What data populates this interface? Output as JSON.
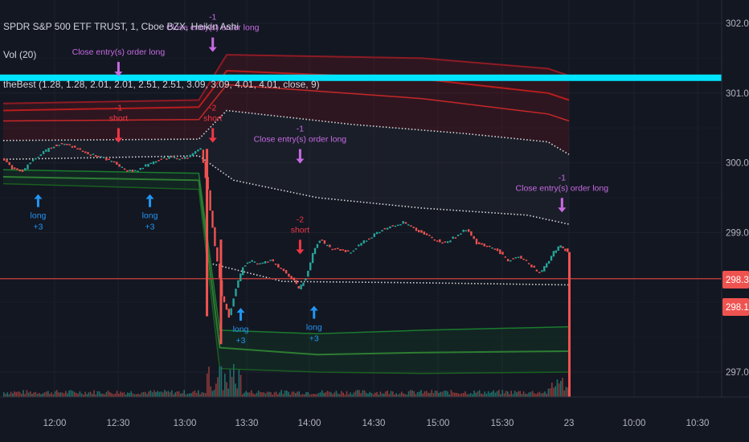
{
  "chart_data": {
    "type": "candlestick",
    "title": "SPDR S&P 500 ETF TRUST, 1, Cboe BZX, Heikin Ashi",
    "volume_label": "Vol (20)",
    "indicator_label": "theBest (1.28, 1.28, 2.01, 2.01, 2.51, 2.51, 3.09, 3.09, 4.01, 4.01, close, 9)",
    "y_axis": {
      "ylim": [
        296.6,
        302.3
      ],
      "ticks": [
        {
          "value": 302,
          "label": "302.00"
        },
        {
          "value": 301,
          "label": "301.00"
        },
        {
          "value": 300,
          "label": "300.00"
        },
        {
          "value": 299,
          "label": "299.00"
        },
        {
          "value": 297,
          "label": "297.00"
        }
      ]
    },
    "x_axis": {
      "ticks": [
        "12:00",
        "12:30",
        "13:00",
        "13:30",
        "14:00",
        "14:30",
        "15:00",
        "15:30",
        "23",
        "10:00",
        "10:30"
      ]
    },
    "price_badges": [
      {
        "label": "298.34",
        "value": 298.34,
        "color": "#ef5350"
      },
      {
        "label": "298.12",
        "value": 298.12,
        "color": "#ef5350"
      }
    ],
    "horizontal_lines": [
      {
        "value": 301.22,
        "color": "#00e5ff"
      },
      {
        "value": 298.34,
        "color": "#b23a3a"
      }
    ],
    "price_series": [
      {
        "t": 0,
        "y": 300.08
      },
      {
        "t": 1.5,
        "y": 299.92
      },
      {
        "t": 3,
        "y": 299.88
      },
      {
        "t": 4.5,
        "y": 300.05
      },
      {
        "t": 6,
        "y": 300.15
      },
      {
        "t": 7.5,
        "y": 300.25
      },
      {
        "t": 9,
        "y": 300.28
      },
      {
        "t": 10.5,
        "y": 300.22
      },
      {
        "t": 12,
        "y": 300.15
      },
      {
        "t": 13.5,
        "y": 300.1
      },
      {
        "t": 15,
        "y": 300.05
      },
      {
        "t": 16.5,
        "y": 299.98
      },
      {
        "t": 18,
        "y": 299.88
      },
      {
        "t": 19.5,
        "y": 299.9
      },
      {
        "t": 21,
        "y": 299.98
      },
      {
        "t": 22.5,
        "y": 300.05
      },
      {
        "t": 24,
        "y": 300.08
      },
      {
        "t": 25.5,
        "y": 300.06
      },
      {
        "t": 27,
        "y": 300.1
      },
      {
        "t": 28.5,
        "y": 300.2
      },
      {
        "t": 29.5,
        "y": 299.6
      },
      {
        "t": 30.5,
        "y": 298.8
      },
      {
        "t": 31.5,
        "y": 298.1
      },
      {
        "t": 32.5,
        "y": 297.8
      },
      {
        "t": 33.5,
        "y": 298.2
      },
      {
        "t": 34.5,
        "y": 298.5
      },
      {
        "t": 35.5,
        "y": 298.6
      },
      {
        "t": 37,
        "y": 298.55
      },
      {
        "t": 38.5,
        "y": 298.6
      },
      {
        "t": 40,
        "y": 298.48
      },
      {
        "t": 41.5,
        "y": 298.35
      },
      {
        "t": 42.5,
        "y": 298.2
      },
      {
        "t": 43.5,
        "y": 298.35
      },
      {
        "t": 44.5,
        "y": 298.7
      },
      {
        "t": 45.5,
        "y": 298.9
      },
      {
        "t": 47,
        "y": 298.78
      },
      {
        "t": 48.5,
        "y": 298.75
      },
      {
        "t": 50,
        "y": 298.72
      },
      {
        "t": 51.5,
        "y": 298.85
      },
      {
        "t": 53,
        "y": 298.95
      },
      {
        "t": 54.5,
        "y": 299.05
      },
      {
        "t": 56,
        "y": 299.1
      },
      {
        "t": 57.5,
        "y": 299.15
      },
      {
        "t": 59,
        "y": 299.05
      },
      {
        "t": 60.5,
        "y": 298.98
      },
      {
        "t": 62,
        "y": 298.9
      },
      {
        "t": 63.5,
        "y": 298.85
      },
      {
        "t": 65,
        "y": 298.95
      },
      {
        "t": 66.5,
        "y": 299.05
      },
      {
        "t": 68,
        "y": 298.85
      },
      {
        "t": 69.5,
        "y": 298.8
      },
      {
        "t": 71,
        "y": 298.75
      },
      {
        "t": 72.5,
        "y": 298.6
      },
      {
        "t": 74,
        "y": 298.65
      },
      {
        "t": 75.5,
        "y": 298.55
      },
      {
        "t": 77,
        "y": 298.42
      },
      {
        "t": 78,
        "y": 298.55
      },
      {
        "t": 79,
        "y": 298.72
      },
      {
        "t": 80,
        "y": 298.82
      },
      {
        "t": 81,
        "y": 298.72
      }
    ],
    "bands": {
      "red_outer_1": [
        {
          "t": 0,
          "y": 300.85
        },
        {
          "t": 28,
          "y": 300.9
        },
        {
          "t": 32,
          "y": 301.55
        },
        {
          "t": 60,
          "y": 301.5
        },
        {
          "t": 78,
          "y": 301.35
        },
        {
          "t": 81,
          "y": 301.25
        }
      ],
      "red_outer_2": [
        {
          "t": 0,
          "y": 300.75
        },
        {
          "t": 28,
          "y": 300.8
        },
        {
          "t": 32,
          "y": 301.32
        },
        {
          "t": 60,
          "y": 301.2
        },
        {
          "t": 78,
          "y": 301.0
        },
        {
          "t": 81,
          "y": 300.9
        }
      ],
      "red_inner": [
        {
          "t": 0,
          "y": 300.6
        },
        {
          "t": 28,
          "y": 300.62
        },
        {
          "t": 32,
          "y": 301.12
        },
        {
          "t": 60,
          "y": 300.92
        },
        {
          "t": 78,
          "y": 300.7
        },
        {
          "t": 81,
          "y": 300.6
        }
      ],
      "white_upper": [
        {
          "t": 0,
          "y": 300.32
        },
        {
          "t": 28,
          "y": 300.34
        },
        {
          "t": 32,
          "y": 300.75
        },
        {
          "t": 50,
          "y": 300.55
        },
        {
          "t": 66,
          "y": 300.42
        },
        {
          "t": 78,
          "y": 300.3
        },
        {
          "t": 81,
          "y": 300.12
        }
      ],
      "white_lower": [
        {
          "t": 0,
          "y": 300.05
        },
        {
          "t": 28,
          "y": 300.1
        },
        {
          "t": 33,
          "y": 299.75
        },
        {
          "t": 45,
          "y": 299.5
        },
        {
          "t": 60,
          "y": 299.35
        },
        {
          "t": 75,
          "y": 299.25
        },
        {
          "t": 81,
          "y": 299.12
        }
      ],
      "white_bottom": [
        {
          "t": 30,
          "y": 298.55
        },
        {
          "t": 40,
          "y": 298.3
        },
        {
          "t": 60,
          "y": 298.28
        },
        {
          "t": 81,
          "y": 298.25
        }
      ],
      "green_1": [
        {
          "t": 0,
          "y": 299.9
        },
        {
          "t": 28,
          "y": 299.85
        },
        {
          "t": 31,
          "y": 297.6
        },
        {
          "t": 45,
          "y": 297.55
        },
        {
          "t": 60,
          "y": 297.6
        },
        {
          "t": 81,
          "y": 297.65
        }
      ],
      "green_2": [
        {
          "t": 0,
          "y": 299.8
        },
        {
          "t": 28,
          "y": 299.75
        },
        {
          "t": 31,
          "y": 297.35
        },
        {
          "t": 45,
          "y": 297.25
        },
        {
          "t": 60,
          "y": 297.28
        },
        {
          "t": 81,
          "y": 297.3
        }
      ],
      "green_3": [
        {
          "t": 0,
          "y": 299.7
        },
        {
          "t": 28,
          "y": 299.62
        },
        {
          "t": 31,
          "y": 297.05
        },
        {
          "t": 45,
          "y": 297.0
        },
        {
          "t": 60,
          "y": 296.98
        },
        {
          "t": 81,
          "y": 297.0
        }
      ]
    },
    "annotations": [
      {
        "t": 16.5,
        "price": 301.55,
        "kind": "short",
        "text": [
          "Close entry(s) order long"
        ],
        "color": "#c76be3",
        "arrow": "down"
      },
      {
        "t": 16.5,
        "price": 300.75,
        "kind": "short",
        "text": [
          "-1",
          "short"
        ],
        "color": "#f23645",
        "arrow": "down"
      },
      {
        "t": 30,
        "price": 302.05,
        "kind": "close",
        "text": [
          "-1",
          "Close entry(s) order long"
        ],
        "color": "#c76be3",
        "arrow": "down"
      },
      {
        "t": 30,
        "price": 300.75,
        "kind": "short",
        "text": [
          "-2",
          "short"
        ],
        "color": "#f23645",
        "arrow": "down"
      },
      {
        "t": 42.5,
        "price": 300.45,
        "kind": "close",
        "text": [
          "-1",
          "Close entry(s) order long"
        ],
        "color": "#c76be3",
        "arrow": "down"
      },
      {
        "t": 42.5,
        "price": 299.15,
        "kind": "short",
        "text": [
          "-2",
          "short"
        ],
        "color": "#f23645",
        "arrow": "down"
      },
      {
        "t": 80,
        "price": 299.75,
        "kind": "close",
        "text": [
          "-1",
          "Close entry(s) order long"
        ],
        "color": "#c76be3",
        "arrow": "down"
      },
      {
        "t": 5,
        "price": 299.55,
        "kind": "long",
        "text": [
          "long",
          "+3"
        ],
        "color": "#2196f3",
        "arrow": "up"
      },
      {
        "t": 21,
        "price": 299.55,
        "kind": "long",
        "text": [
          "long",
          "+3"
        ],
        "color": "#2196f3",
        "arrow": "up"
      },
      {
        "t": 34,
        "price": 297.92,
        "kind": "long",
        "text": [
          "long",
          "+3"
        ],
        "color": "#2196f3",
        "arrow": "up"
      },
      {
        "t": 44.5,
        "price": 297.95,
        "kind": "long",
        "text": [
          "long",
          "+3"
        ],
        "color": "#2196f3",
        "arrow": "up"
      }
    ],
    "colors": {
      "background": "#131722",
      "up": "#26a69a",
      "down": "#ef5350",
      "grid": "#1e222d",
      "axis_text": "#b2b5be",
      "cyan_line": "#00e5ff"
    }
  }
}
